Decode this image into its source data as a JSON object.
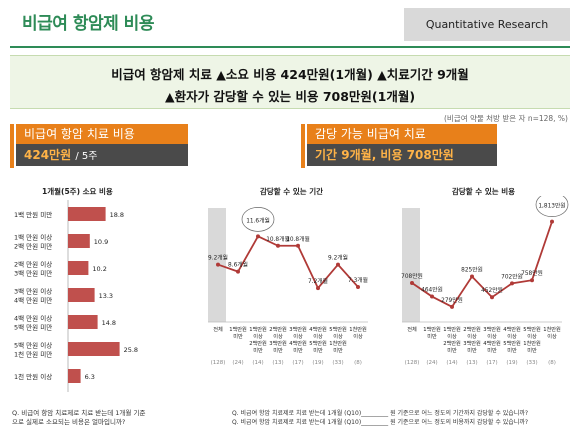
{
  "header": {
    "title": "비급여 항암제 비용",
    "badge": "Quantitative Research"
  },
  "headline": {
    "line1": "비급여 항암제 치료 ▲소요 비용 424만원(1개월) ▲치료기간 9개월",
    "line2": "▲환자가 감당할 수 있는 비용 708만원(1개월)"
  },
  "note": "(비급여 약물 처방 받은 자 n=128, %)",
  "summary_left": {
    "label": "비급여 항암 치료 비용",
    "value": "424만원",
    "suffix": "/ 5주"
  },
  "summary_right": {
    "label": "감당 가능 비급여 치료",
    "value": "기간 9개월, 비용 708만원"
  },
  "footer": {
    "left_l1": "Q. 비급여 항암 치료제로 치료 받는데 1개월 기준",
    "left_l2": "으로 실제로 소요되는 비용은 얼마입니까?",
    "right_l1": "Q. 비급여 항암 치료제로 치료 받는데 1개월 (Q10)_________ 원 기준으로 어느 정도의 기간까지 감당할 수 있습니까?",
    "right_l2": "Q. 비급여 항암 치료제로 치료 받는데 1개월 (Q10)_________ 원 기준으로 어느 정도의 비용까지 감당할 수 있습니까?"
  },
  "colors": {
    "accent": "#2e8b57",
    "bar": "#c0504d",
    "line": "#b03a37",
    "orange": "#e8801a"
  },
  "chart_data": [
    {
      "type": "bar",
      "title": "1개월(5주) 소요 비용",
      "categories": [
        "1백 만원 미만",
        "1백 만원 이상 2백 만원 미만",
        "2백 만원 이상 3백 만원 미만",
        "3백 만원 이상 4백 만원 미만",
        "4백 만원 이상 5백 만원 미만",
        "5백 만원 이상 1천 만원 미만",
        "1천 만원 이상"
      ],
      "category_lines": [
        [
          "1백 만원 미만"
        ],
        [
          "1백 만원 이상",
          "2백 만원 미만"
        ],
        [
          "2백 만원 이상",
          "3백 만원 미만"
        ],
        [
          "3백 만원 이상",
          "4백 만원 미만"
        ],
        [
          "4백 만원 이상",
          "5백 만원 미만"
        ],
        [
          "5백 만원 이상",
          "1천 만원 미만"
        ],
        [
          "1천 만원 이상"
        ]
      ],
      "values": [
        18.8,
        10.9,
        10.2,
        13.3,
        14.8,
        25.8,
        6.3
      ],
      "value_labels": [
        "18.8",
        "10.9",
        "10.2",
        "13.3",
        "14.8",
        "25.8",
        "6.3"
      ]
    },
    {
      "type": "line",
      "title": "감당할 수 있는 기간",
      "categories": [
        "전체",
        "1백만원 미만",
        "1백만원 이상 2백만원 미만",
        "2백만원 이상 3백만원 미만",
        "3백만원 이상 4백만원 미만",
        "4백만원 이상 5백만원 미만",
        "5백만원 이상 1천만원 미만",
        "1천만원 이상"
      ],
      "category_lines": [
        [
          "전체"
        ],
        [
          "1백만원",
          "미만"
        ],
        [
          "1백만원",
          "이상",
          "2백만원",
          "미만"
        ],
        [
          "2백만원",
          "이상",
          "3백만원",
          "미만"
        ],
        [
          "3백만원",
          "이상",
          "4백만원",
          "미만"
        ],
        [
          "4백만원",
          "이상",
          "5백만원",
          "미만"
        ],
        [
          "5백만원",
          "이상",
          "1천만원",
          "미만"
        ],
        [
          "1천만원",
          "이상"
        ]
      ],
      "values": [
        9.2,
        8.6,
        11.6,
        10.8,
        10.8,
        7.2,
        9.2,
        7.3
      ],
      "value_labels": [
        "9.2개월",
        "8.6개월",
        "11.6개월",
        "10.8개월",
        "10.8개월",
        "7.2개월",
        "9.2개월",
        "7.3개월"
      ],
      "bases": [
        "(128)",
        "(24)",
        "(14)",
        "(13)",
        "(17)",
        "(19)",
        "(33)",
        "(8)"
      ],
      "highlight_index": 2
    },
    {
      "type": "line",
      "title": "감당할 수 있는 비용",
      "categories": [
        "전체",
        "1백만원 미만",
        "1백만원 이상 2백만원 미만",
        "2백만원 이상 3백만원 미만",
        "3백만원 이상 4백만원 미만",
        "4백만원 이상 5백만원 미만",
        "5백만원 이상 1천만원 미만",
        "1천만원 이상"
      ],
      "category_lines": [
        [
          "전체"
        ],
        [
          "1백만원",
          "미만"
        ],
        [
          "1백만원",
          "이상",
          "2백만원",
          "미만"
        ],
        [
          "2백만원",
          "이상",
          "3백만원",
          "미만"
        ],
        [
          "3백만원",
          "이상",
          "4백만원",
          "미만"
        ],
        [
          "4백만원",
          "이상",
          "5백만원",
          "미만"
        ],
        [
          "5백만원",
          "이상",
          "1천만원",
          "미만"
        ],
        [
          "1천만원",
          "이상"
        ]
      ],
      "values": [
        708,
        464,
        279,
        825,
        452,
        702,
        758,
        1813
      ],
      "value_labels": [
        "708만원",
        "464만원",
        "279만원",
        "825만원",
        "452만원",
        "702만원",
        "758만원",
        "1,813만원"
      ],
      "bases": [
        "(128)",
        "(24)",
        "(14)",
        "(13)",
        "(17)",
        "(19)",
        "(33)",
        "(8)"
      ],
      "highlight_index": 7
    }
  ]
}
